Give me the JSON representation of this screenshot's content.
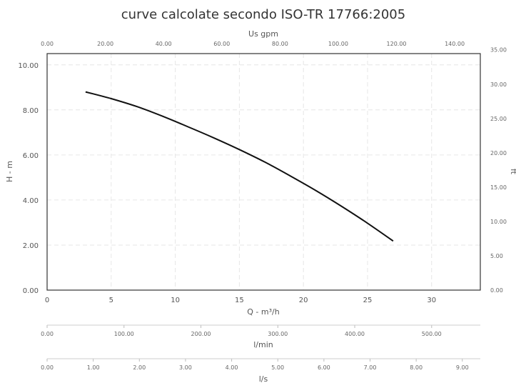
{
  "chart_data": {
    "type": "line",
    "title": "curve calcolate secondo ISO-TR 17766:2005",
    "xlabel": "Q - m³/h",
    "ylabel": "H - m",
    "xlim": [
      0,
      33.8
    ],
    "ylim": [
      0,
      10.5
    ],
    "grid": true,
    "x_ticks": [
      "0",
      "5",
      "10",
      "15",
      "20",
      "25",
      "30"
    ],
    "y_ticks": [
      "0.00",
      "2.00",
      "4.00",
      "6.00",
      "8.00",
      "10.00"
    ],
    "series": [
      {
        "x": [
          3,
          5,
          7,
          9,
          11,
          13,
          15,
          17,
          19,
          21,
          23,
          25,
          27
        ],
        "y": [
          8.8,
          8.5,
          8.15,
          7.72,
          7.25,
          6.76,
          6.24,
          5.68,
          5.06,
          4.41,
          3.71,
          2.97,
          2.18
        ]
      }
    ],
    "top_axis": {
      "label": "Us gpm",
      "range": [
        0,
        148.8
      ],
      "ticks": [
        "0.00",
        "20.00",
        "40.00",
        "60.00",
        "80.00",
        "100.00",
        "120.00",
        "140.00"
      ]
    },
    "right_axis": {
      "label": "ft",
      "range": [
        0,
        34.45
      ],
      "ticks": [
        "0.00",
        "5.00",
        "10.00",
        "15.00",
        "20.00",
        "25.00",
        "30.00",
        "35.00"
      ]
    },
    "extra_axes": [
      {
        "label": "l/min",
        "range": [
          0,
          563.3
        ],
        "ticks": [
          "0.00",
          "100.00",
          "200.00",
          "300.00",
          "400.00",
          "500.00"
        ]
      },
      {
        "label": "l/s",
        "range": [
          0,
          9.39
        ],
        "ticks": [
          "0.00",
          "1.00",
          "2.00",
          "3.00",
          "4.00",
          "5.00",
          "6.00",
          "7.00",
          "8.00",
          "9.00"
        ]
      }
    ]
  }
}
